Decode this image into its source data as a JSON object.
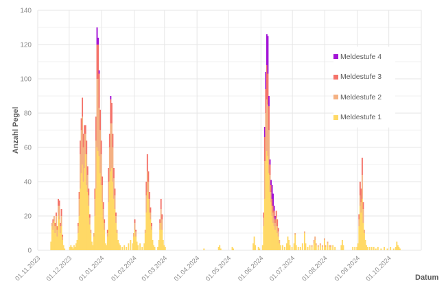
{
  "chart_data": {
    "type": "bar",
    "stacked": true,
    "title": "",
    "xlabel": "Datum",
    "ylabel": "Anzahl Pegel",
    "ylim": [
      0,
      140
    ],
    "y_ticks": [
      0,
      20,
      40,
      60,
      80,
      100,
      120,
      140
    ],
    "x_ticks": [
      "01.11.2023",
      "01.12.2023",
      "01.01.2024",
      "01.02.2024",
      "01.03.2024",
      "01.04.2024",
      "01.05.2024",
      "01.06.2024",
      "01.07.2024",
      "01.08.2024",
      "01.09.2024",
      "01.10.2024"
    ],
    "grid": true,
    "legend_position": "upper right (inside)",
    "series": [
      {
        "name": "Meldestufe 4",
        "color": "#a314d6"
      },
      {
        "name": "Meldestufe 3",
        "color": "#f4736a"
      },
      {
        "name": "Meldestufe 2",
        "color": "#f4b183"
      },
      {
        "name": "Meldestufe 1",
        "color": "#ffd966"
      }
    ],
    "x_domain": {
      "start": "2023-11-01",
      "days": 366
    },
    "bars_note": "Each bar: [day_offset, Meldestufe1, Meldestufe2, Meldestufe3, Meldestufe4]",
    "bars": [
      [
        12,
        5,
        0,
        0,
        0
      ],
      [
        13,
        14,
        2,
        0,
        0
      ],
      [
        14,
        12,
        4,
        2,
        0
      ],
      [
        15,
        17,
        3,
        0,
        0
      ],
      [
        16,
        10,
        4,
        2,
        0
      ],
      [
        17,
        14,
        6,
        2,
        0
      ],
      [
        18,
        8,
        4,
        2,
        0
      ],
      [
        19,
        20,
        6,
        4,
        0
      ],
      [
        20,
        18,
        8,
        3,
        0
      ],
      [
        21,
        10,
        4,
        2,
        0
      ],
      [
        22,
        14,
        6,
        4,
        0
      ],
      [
        23,
        6,
        2,
        1,
        0
      ],
      [
        24,
        3,
        0,
        0,
        0
      ],
      [
        25,
        1,
        0,
        0,
        0
      ],
      [
        30,
        2,
        0,
        0,
        0
      ],
      [
        31,
        3,
        0,
        0,
        0
      ],
      [
        32,
        2,
        0,
        0,
        0
      ],
      [
        33,
        1,
        0,
        0,
        0
      ],
      [
        34,
        3,
        0,
        0,
        0
      ],
      [
        35,
        2,
        0,
        0,
        0
      ],
      [
        36,
        4,
        0,
        0,
        0
      ],
      [
        37,
        6,
        0,
        0,
        0
      ],
      [
        38,
        10,
        4,
        2,
        0
      ],
      [
        39,
        20,
        10,
        4,
        0
      ],
      [
        40,
        36,
        20,
        8,
        0
      ],
      [
        41,
        45,
        25,
        7,
        0
      ],
      [
        42,
        50,
        28,
        11,
        0
      ],
      [
        43,
        40,
        20,
        8,
        0
      ],
      [
        44,
        48,
        20,
        5,
        0
      ],
      [
        45,
        56,
        12,
        5,
        0
      ],
      [
        46,
        38,
        18,
        8,
        0
      ],
      [
        47,
        34,
        10,
        5,
        0
      ],
      [
        48,
        26,
        6,
        4,
        0
      ],
      [
        49,
        15,
        4,
        2,
        0
      ],
      [
        50,
        10,
        2,
        0,
        0
      ],
      [
        51,
        5,
        0,
        0,
        0
      ],
      [
        52,
        3,
        0,
        0,
        0
      ],
      [
        53,
        8,
        2,
        0,
        0
      ],
      [
        54,
        20,
        10,
        6,
        0
      ],
      [
        55,
        36,
        28,
        14,
        0
      ],
      [
        56,
        60,
        40,
        20,
        10
      ],
      [
        57,
        58,
        42,
        20,
        4
      ],
      [
        58,
        55,
        28,
        20,
        2
      ],
      [
        59,
        45,
        25,
        12,
        0
      ],
      [
        60,
        38,
        18,
        8,
        0
      ],
      [
        61,
        28,
        10,
        5,
        0
      ],
      [
        62,
        18,
        6,
        4,
        0
      ],
      [
        63,
        12,
        4,
        2,
        0
      ],
      [
        64,
        4,
        0,
        0,
        0
      ],
      [
        65,
        3,
        0,
        0,
        0
      ],
      [
        66,
        8,
        2,
        2,
        0
      ],
      [
        67,
        28,
        12,
        8,
        0
      ],
      [
        68,
        40,
        20,
        8,
        0
      ],
      [
        69,
        46,
        28,
        14,
        2
      ],
      [
        70,
        48,
        26,
        12,
        0
      ],
      [
        71,
        40,
        20,
        8,
        0
      ],
      [
        72,
        30,
        12,
        6,
        0
      ],
      [
        73,
        24,
        8,
        4,
        0
      ],
      [
        74,
        16,
        4,
        2,
        0
      ],
      [
        75,
        10,
        2,
        0,
        0
      ],
      [
        76,
        6,
        0,
        0,
        0
      ],
      [
        77,
        4,
        0,
        0,
        0
      ],
      [
        78,
        3,
        0,
        0,
        0
      ],
      [
        80,
        2,
        0,
        0,
        0
      ],
      [
        82,
        3,
        0,
        0,
        0
      ],
      [
        84,
        2,
        0,
        0,
        0
      ],
      [
        86,
        4,
        0,
        0,
        0
      ],
      [
        88,
        6,
        0,
        0,
        0
      ],
      [
        90,
        4,
        0,
        0,
        0
      ],
      [
        91,
        8,
        2,
        0,
        0
      ],
      [
        92,
        12,
        4,
        2,
        0
      ],
      [
        93,
        8,
        3,
        1,
        0
      ],
      [
        94,
        5,
        0,
        0,
        0
      ],
      [
        95,
        3,
        0,
        0,
        0
      ],
      [
        97,
        4,
        0,
        0,
        0
      ],
      [
        99,
        2,
        0,
        0,
        0
      ],
      [
        101,
        4,
        0,
        0,
        0
      ],
      [
        102,
        10,
        2,
        0,
        0
      ],
      [
        103,
        22,
        10,
        8,
        0
      ],
      [
        104,
        34,
        12,
        10,
        0
      ],
      [
        105,
        30,
        10,
        6,
        0
      ],
      [
        106,
        22,
        8,
        4,
        0
      ],
      [
        107,
        18,
        4,
        3,
        0
      ],
      [
        108,
        12,
        2,
        2,
        0
      ],
      [
        109,
        6,
        0,
        0,
        0
      ],
      [
        110,
        3,
        0,
        0,
        0
      ],
      [
        111,
        2,
        0,
        0,
        0
      ],
      [
        114,
        2,
        0,
        0,
        0
      ],
      [
        115,
        6,
        0,
        0,
        0
      ],
      [
        116,
        12,
        4,
        2,
        0
      ],
      [
        117,
        16,
        8,
        6,
        0
      ],
      [
        118,
        12,
        6,
        3,
        0
      ],
      [
        119,
        6,
        0,
        0,
        0
      ],
      [
        120,
        3,
        0,
        0,
        0
      ],
      [
        121,
        2,
        0,
        0,
        0
      ],
      [
        158,
        1,
        0,
        0,
        0
      ],
      [
        172,
        2,
        0,
        0,
        0
      ],
      [
        173,
        3,
        0,
        0,
        0
      ],
      [
        174,
        1,
        0,
        0,
        0
      ],
      [
        185,
        2,
        0,
        0,
        0
      ],
      [
        186,
        1,
        0,
        0,
        0
      ],
      [
        205,
        4,
        0,
        0,
        0
      ],
      [
        206,
        8,
        0,
        0,
        0
      ],
      [
        207,
        3,
        0,
        0,
        0
      ],
      [
        210,
        2,
        0,
        0,
        0
      ],
      [
        211,
        1,
        0,
        0,
        0
      ],
      [
        214,
        3,
        0,
        0,
        0
      ],
      [
        215,
        14,
        5,
        3,
        0
      ],
      [
        216,
        30,
        22,
        14,
        6
      ],
      [
        217,
        52,
        28,
        14,
        10
      ],
      [
        218,
        58,
        30,
        20,
        18
      ],
      [
        219,
        55,
        30,
        18,
        22
      ],
      [
        220,
        45,
        25,
        14,
        6
      ],
      [
        221,
        34,
        10,
        6,
        3
      ],
      [
        222,
        28,
        6,
        4,
        3
      ],
      [
        223,
        20,
        6,
        4,
        8
      ],
      [
        224,
        16,
        6,
        4,
        7
      ],
      [
        225,
        14,
        5,
        4,
        3
      ],
      [
        226,
        12,
        4,
        2,
        2
      ],
      [
        227,
        14,
        5,
        4,
        0
      ],
      [
        228,
        10,
        4,
        4,
        0
      ],
      [
        229,
        8,
        3,
        2,
        0
      ],
      [
        230,
        4,
        2,
        0,
        0
      ],
      [
        231,
        3,
        0,
        0,
        0
      ],
      [
        233,
        3,
        0,
        0,
        0
      ],
      [
        235,
        2,
        0,
        0,
        0
      ],
      [
        237,
        4,
        0,
        0,
        0
      ],
      [
        238,
        8,
        0,
        0,
        0
      ],
      [
        239,
        6,
        0,
        0,
        0
      ],
      [
        240,
        3,
        0,
        0,
        0
      ],
      [
        242,
        2,
        0,
        0,
        0
      ],
      [
        244,
        4,
        0,
        0,
        0
      ],
      [
        245,
        9,
        1,
        0,
        0
      ],
      [
        246,
        3,
        0,
        0,
        0
      ],
      [
        248,
        2,
        0,
        0,
        0
      ],
      [
        250,
        2,
        0,
        0,
        0
      ],
      [
        252,
        4,
        0,
        0,
        0
      ],
      [
        254,
        10,
        1,
        0,
        0
      ],
      [
        255,
        4,
        0,
        0,
        0
      ],
      [
        257,
        2,
        0,
        0,
        0
      ],
      [
        259,
        3,
        0,
        0,
        0
      ],
      [
        261,
        2,
        1,
        0,
        0
      ],
      [
        263,
        4,
        2,
        0,
        0
      ],
      [
        264,
        6,
        2,
        0,
        0
      ],
      [
        265,
        3,
        1,
        0,
        0
      ],
      [
        267,
        2,
        1,
        0,
        0
      ],
      [
        269,
        3,
        1,
        0,
        0
      ],
      [
        271,
        2,
        1,
        0,
        0
      ],
      [
        273,
        6,
        1,
        0,
        0
      ],
      [
        274,
        2,
        1,
        0,
        0
      ],
      [
        276,
        4,
        1,
        0,
        0
      ],
      [
        278,
        2,
        1,
        0,
        0
      ],
      [
        279,
        2,
        1,
        0,
        0
      ],
      [
        281,
        3,
        0,
        0,
        0
      ],
      [
        283,
        2,
        0,
        0,
        0
      ],
      [
        289,
        3,
        0,
        0,
        0
      ],
      [
        290,
        6,
        0,
        0,
        0
      ],
      [
        291,
        3,
        0,
        0,
        0
      ],
      [
        300,
        2,
        0,
        0,
        0
      ],
      [
        302,
        2,
        0,
        0,
        0
      ],
      [
        304,
        2,
        0,
        0,
        0
      ],
      [
        305,
        4,
        0,
        0,
        0
      ],
      [
        306,
        14,
        4,
        3,
        0
      ],
      [
        307,
        26,
        6,
        8,
        0
      ],
      [
        308,
        22,
        6,
        8,
        0
      ],
      [
        309,
        30,
        14,
        10,
        0
      ],
      [
        310,
        16,
        8,
        4,
        0
      ],
      [
        311,
        10,
        2,
        0,
        0
      ],
      [
        312,
        6,
        0,
        0,
        0
      ],
      [
        313,
        3,
        0,
        0,
        0
      ],
      [
        314,
        2,
        0,
        0,
        0
      ],
      [
        316,
        2,
        0,
        0,
        0
      ],
      [
        318,
        2,
        0,
        0,
        0
      ],
      [
        320,
        2,
        0,
        0,
        0
      ],
      [
        322,
        1,
        0,
        0,
        0
      ],
      [
        324,
        2,
        0,
        0,
        0
      ],
      [
        327,
        1,
        0,
        0,
        0
      ],
      [
        330,
        2,
        0,
        0,
        0
      ],
      [
        333,
        1,
        0,
        0,
        0
      ],
      [
        336,
        2,
        0,
        0,
        0
      ],
      [
        339,
        1,
        0,
        0,
        0
      ],
      [
        341,
        2,
        0,
        0,
        0
      ],
      [
        342,
        5,
        0,
        0,
        0
      ],
      [
        343,
        3,
        0,
        0,
        0
      ],
      [
        344,
        2,
        0,
        0,
        0
      ],
      [
        345,
        1,
        0,
        0,
        0
      ]
    ]
  }
}
